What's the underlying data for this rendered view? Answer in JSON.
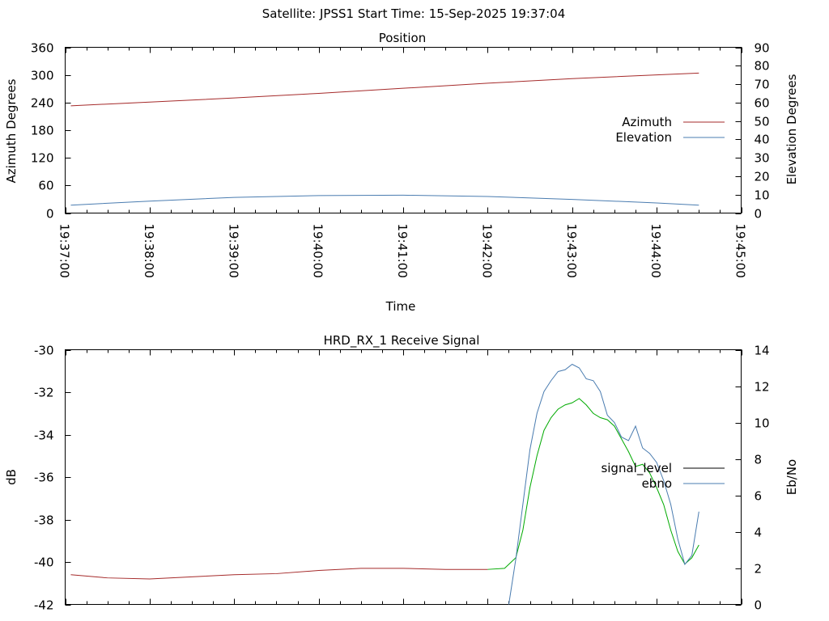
{
  "header": {
    "title": "Satellite: JPSS1    Start Time: 15-Sep-2025 19:37:04"
  },
  "chart_data": [
    {
      "type": "line",
      "title": "Position",
      "xlabel": "Time",
      "ylabel": "Azimuth Degrees",
      "y2label": "Elevation Degrees",
      "x_ticks": [
        "19:37:00",
        "19:38:00",
        "19:39:00",
        "19:40:00",
        "19:41:00",
        "19:42:00",
        "19:43:00",
        "19:44:00",
        "19:45:00"
      ],
      "xlim": [
        "19:37:00",
        "19:45:00"
      ],
      "ylim": [
        0,
        360
      ],
      "y_ticks": [
        0,
        60,
        120,
        180,
        240,
        300,
        360
      ],
      "y2lim": [
        0,
        90
      ],
      "y2_ticks": [
        0,
        10,
        20,
        30,
        40,
        50,
        60,
        70,
        80,
        90
      ],
      "grid": false,
      "legend_position": "right",
      "series": [
        {
          "name": "Azimuth",
          "axis": "y",
          "color": "#a52a2a",
          "x": [
            "19:37:04",
            "19:38:00",
            "19:39:00",
            "19:40:00",
            "19:41:00",
            "19:42:00",
            "19:43:00",
            "19:44:00",
            "19:44:30"
          ],
          "y": [
            233,
            241,
            250,
            260,
            271,
            282,
            292,
            300,
            304
          ]
        },
        {
          "name": "Elevation",
          "axis": "y2",
          "color": "#4a7cb0",
          "x": [
            "19:37:04",
            "19:38:00",
            "19:39:00",
            "19:40:00",
            "19:41:00",
            "19:42:00",
            "19:43:00",
            "19:44:00",
            "19:44:30"
          ],
          "y": [
            4.3,
            6.5,
            8.5,
            9.5,
            9.7,
            9.0,
            7.4,
            5.5,
            4.3
          ]
        }
      ]
    },
    {
      "type": "line",
      "title": "HRD_RX_1 Receive Signal",
      "ylabel": "dB",
      "y2label": "Eb/No",
      "ylim": [
        -42,
        -30
      ],
      "y_ticks": [
        -42,
        -40,
        -38,
        -36,
        -34,
        -32,
        -30
      ],
      "y2lim": [
        0,
        14
      ],
      "y2_ticks": [
        0,
        2,
        4,
        6,
        8,
        10,
        12,
        14
      ],
      "xlim": [
        "19:37:00",
        "19:45:00"
      ],
      "grid": false,
      "legend_position": "right",
      "series": [
        {
          "name": "signal_level",
          "axis": "y",
          "legend_color": "#000000",
          "segment_colors": [
            "#a52a2a",
            "#00aa00"
          ],
          "x": [
            "19:37:04",
            "19:37:30",
            "19:38:00",
            "19:38:30",
            "19:39:00",
            "19:39:30",
            "19:40:00",
            "19:40:30",
            "19:41:00",
            "19:41:30",
            "19:42:00",
            "19:42:12",
            "19:42:20",
            "19:42:25",
            "19:42:30",
            "19:42:35",
            "19:42:40",
            "19:42:45",
            "19:42:50",
            "19:42:55",
            "19:43:00",
            "19:43:05",
            "19:43:10",
            "19:43:15",
            "19:43:20",
            "19:43:25",
            "19:43:30",
            "19:43:35",
            "19:43:40",
            "19:43:45",
            "19:43:50",
            "19:43:55",
            "19:44:00",
            "19:44:05",
            "19:44:10",
            "19:44:15",
            "19:44:20",
            "19:44:25",
            "19:44:30"
          ],
          "y": [
            -40.6,
            -40.75,
            -40.8,
            -40.7,
            -40.6,
            -40.55,
            -40.4,
            -40.3,
            -40.3,
            -40.35,
            -40.35,
            -40.3,
            -39.8,
            -38.5,
            -36.5,
            -35.0,
            -33.8,
            -33.2,
            -32.8,
            -32.6,
            -32.5,
            -32.3,
            -32.6,
            -33.0,
            -33.2,
            -33.3,
            -33.6,
            -34.2,
            -34.8,
            -35.5,
            -35.4,
            -35.8,
            -36.5,
            -37.3,
            -38.5,
            -39.5,
            -40.1,
            -39.8,
            -39.2
          ]
        },
        {
          "name": "ebno",
          "axis": "y2",
          "color": "#4a7cb0",
          "x": [
            "19:42:15",
            "19:42:20",
            "19:42:25",
            "19:42:30",
            "19:42:35",
            "19:42:40",
            "19:42:45",
            "19:42:50",
            "19:42:55",
            "19:43:00",
            "19:43:05",
            "19:43:10",
            "19:43:15",
            "19:43:20",
            "19:43:25",
            "19:43:30",
            "19:43:35",
            "19:43:40",
            "19:43:45",
            "19:43:50",
            "19:43:55",
            "19:44:00",
            "19:44:05",
            "19:44:10",
            "19:44:15",
            "19:44:20",
            "19:44:25",
            "19:44:30"
          ],
          "y": [
            0,
            2.5,
            5.5,
            8.5,
            10.5,
            11.7,
            12.3,
            12.8,
            12.9,
            13.2,
            13.0,
            12.4,
            12.3,
            11.7,
            10.4,
            10.0,
            9.2,
            9.0,
            9.8,
            8.6,
            8.3,
            7.8,
            6.8,
            5.5,
            3.6,
            2.2,
            2.7,
            5.1
          ]
        }
      ]
    }
  ]
}
